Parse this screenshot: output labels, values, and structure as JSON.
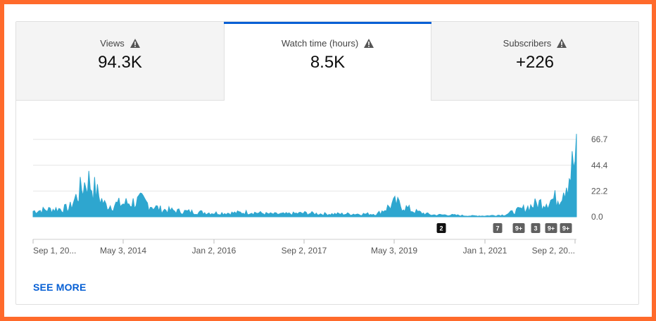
{
  "tabs": [
    {
      "label": "Views",
      "value": "94.3K",
      "selected": false
    },
    {
      "label": "Watch time (hours)",
      "value": "8.5K",
      "selected": true
    },
    {
      "label": "Subscribers",
      "value": "+226",
      "selected": false
    }
  ],
  "see_more": "SEE MORE",
  "colors": {
    "accent": "#065fd4",
    "series": "#2ea6cf",
    "badge_dark": "#111111",
    "badge_gray": "#606060",
    "frame": "#ff6a2b"
  },
  "chart_data": {
    "type": "area",
    "ylabel": "",
    "xlabel": "",
    "y_ticks": [
      "66.7",
      "44.4",
      "22.2",
      "0.0"
    ],
    "ylim": [
      0,
      66.7
    ],
    "x_ticks": [
      "Sep 1, 20...",
      "May 3, 2014",
      "Jan 2, 2016",
      "Sep 2, 2017",
      "May 3, 2019",
      "Jan 1, 2021",
      "Sep 2, 20..."
    ],
    "grid": true,
    "series": [
      {
        "x": [
          "2012-09",
          "2013-01",
          "2013-05",
          "2013-09",
          "2014-01",
          "2014-05",
          "2014-09",
          "2015-01",
          "2015-05",
          "2015-09",
          "2016-01",
          "2016-05",
          "2016-09",
          "2017-01",
          "2017-05",
          "2017-09",
          "2018-01",
          "2018-05",
          "2018-09",
          "2019-01",
          "2019-05",
          "2019-09",
          "2020-01",
          "2020-05",
          "2020-09",
          "2021-01",
          "2021-05",
          "2021-09",
          "2022-01",
          "2022-05",
          "2022-09"
        ],
        "values": [
          6,
          8,
          9,
          40,
          12,
          14,
          17,
          8,
          6,
          5,
          4,
          4,
          5,
          3,
          3,
          4,
          3,
          3,
          3,
          3,
          15,
          6,
          2,
          2,
          1,
          1,
          2,
          8,
          15,
          20,
          62
        ]
      }
    ],
    "annotations": [
      "2",
      "7",
      "9+",
      "3",
      "9+",
      "9+"
    ]
  }
}
